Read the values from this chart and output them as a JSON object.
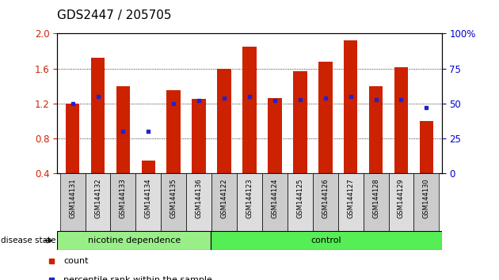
{
  "title": "GDS2447 / 205705",
  "samples": [
    "GSM144131",
    "GSM144132",
    "GSM144133",
    "GSM144134",
    "GSM144135",
    "GSM144136",
    "GSM144122",
    "GSM144123",
    "GSM144124",
    "GSM144125",
    "GSM144126",
    "GSM144127",
    "GSM144128",
    "GSM144129",
    "GSM144130"
  ],
  "bar_values": [
    1.2,
    1.72,
    1.4,
    0.55,
    1.35,
    1.25,
    1.6,
    1.85,
    1.26,
    1.57,
    1.68,
    1.92,
    1.4,
    1.62,
    1.0
  ],
  "dot_values_pct": [
    50,
    55,
    30,
    30,
    50,
    52,
    54,
    55,
    52,
    53,
    54,
    55,
    53,
    53,
    47
  ],
  "bar_color": "#cc2200",
  "dot_color": "#2222cc",
  "ylim_left": [
    0.4,
    2.0
  ],
  "ylim_right": [
    0,
    100
  ],
  "yticks_left": [
    0.4,
    0.8,
    1.2,
    1.6,
    2.0
  ],
  "yticks_right": [
    0,
    25,
    50,
    75,
    100
  ],
  "ytick_labels_right": [
    "0",
    "25",
    "50",
    "75",
    "100%"
  ],
  "grid_values": [
    0.8,
    1.2,
    1.6
  ],
  "groups": [
    {
      "label": "nicotine dependence",
      "start": 0,
      "end": 6,
      "color": "#99ee88"
    },
    {
      "label": "control",
      "start": 6,
      "end": 15,
      "color": "#55ee55"
    }
  ],
  "disease_state_label": "disease state",
  "legend_items": [
    {
      "color": "#cc2200",
      "label": "count"
    },
    {
      "color": "#2222cc",
      "label": "percentile rank within the sample"
    }
  ],
  "background_color": "#ffffff",
  "plot_bg": "#ffffff",
  "tick_label_color_left": "#cc2200",
  "tick_label_color_right": "#0000cc",
  "bar_width": 0.55,
  "title_fontsize": 11,
  "tick_fontsize": 8.5,
  "label_fontsize": 8
}
